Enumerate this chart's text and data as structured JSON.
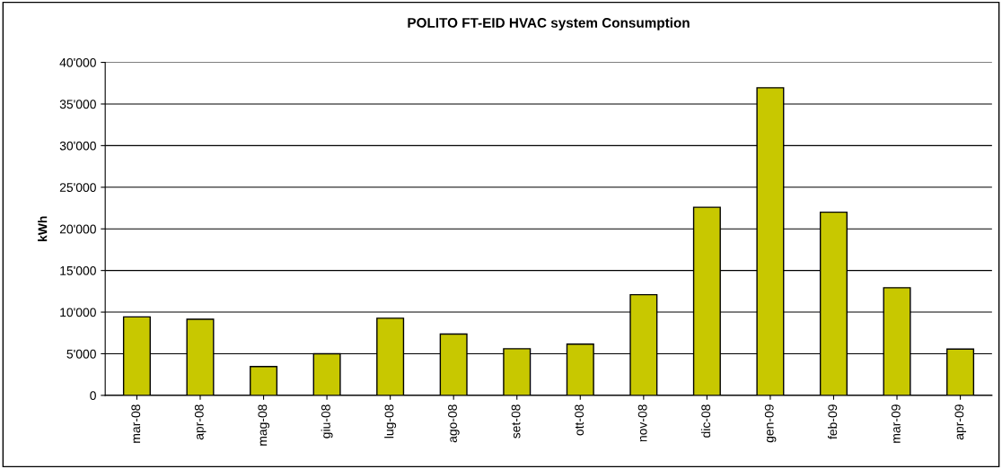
{
  "chart_data": {
    "type": "bar",
    "title": "POLITO FT-EID HVAC system Consumption",
    "ylabel": "kWh",
    "categories": [
      "mar-08",
      "apr-08",
      "mag-08",
      "giu-08",
      "lug-08",
      "ago-08",
      "set-08",
      "ott-08",
      "nov-08",
      "dic-08",
      "gen-09",
      "feb-09",
      "mar-09",
      "apr-09"
    ],
    "values": [
      9430,
      9150,
      3460,
      5000,
      9270,
      7360,
      5600,
      6150,
      12090,
      22600,
      36950,
      22000,
      12930,
      5560
    ],
    "color": "#c8c800",
    "ylim": [
      0,
      40000
    ],
    "yticks": [
      0,
      {
        "value": 5000,
        "label": "5'000"
      },
      {
        "value": 10000,
        "label": "10'000"
      },
      {
        "value": 15000,
        "label": "15'000"
      },
      {
        "value": 20000,
        "label": "20'000"
      },
      {
        "value": 25000,
        "label": "25'000"
      },
      {
        "value": 30000,
        "label": "30'000"
      },
      {
        "value": 35000,
        "label": "35'000"
      },
      {
        "value": 40000,
        "label": "40'000"
      }
    ],
    "grid": "y"
  }
}
